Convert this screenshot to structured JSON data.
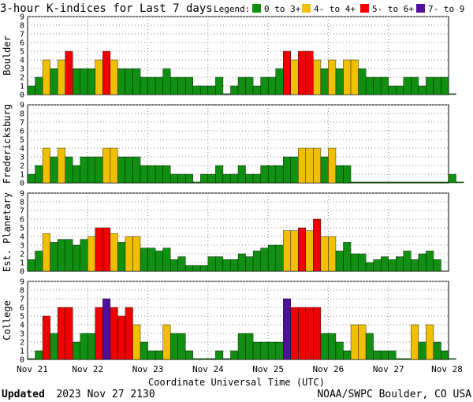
{
  "title": "3-hour K-indices for Last 7 days",
  "legend": {
    "label": "Legend:",
    "items": [
      {
        "label": "0 to 3+",
        "color": "#109010"
      },
      {
        "label": "4- to 4+",
        "color": "#f0c000"
      },
      {
        "label": "5- to 6+",
        "color": "#f00000"
      },
      {
        "label": "7- to 9",
        "color": "#50109a"
      }
    ]
  },
  "colors": {
    "grid": "#888888",
    "frame": "#000000",
    "bar_outline": "#000000"
  },
  "footer": {
    "updated_label": "Updated",
    "updated_value": "2023 Nov 27 2130",
    "source": "NOAA/SWPC Boulder, CO USA"
  },
  "chart_data": {
    "type": "bar",
    "xlabel": "Coordinate Universal Time (UTC)",
    "x_ticks": [
      "Nov 21",
      "Nov 22",
      "Nov 23",
      "Nov 24",
      "Nov 25",
      "Nov 26",
      "Nov 27",
      "Nov 28"
    ],
    "y_ticks": [
      "0",
      "1",
      "2",
      "3",
      "4",
      "5",
      "6",
      "7",
      "8",
      "9"
    ],
    "ylim": [
      0,
      9
    ],
    "intervals_per_day": 8,
    "color_thresholds": [
      {
        "min": 0,
        "max": 3.9,
        "color": "#109010"
      },
      {
        "min": 3.9,
        "max": 4.9,
        "color": "#f0c000"
      },
      {
        "min": 4.9,
        "max": 6.9,
        "color": "#f00000"
      },
      {
        "min": 6.9,
        "max": 9,
        "color": "#50109a"
      }
    ],
    "series": [
      {
        "name": "Boulder",
        "values": [
          1,
          2,
          4,
          3,
          4,
          5,
          3,
          3,
          3,
          4,
          5,
          4,
          3,
          3,
          3,
          2,
          2,
          2,
          3,
          2,
          2,
          2,
          1,
          1,
          1,
          2,
          0.1,
          1,
          2,
          2,
          1,
          2,
          2,
          3,
          5,
          4,
          5,
          5,
          4,
          3,
          4,
          3,
          4,
          4,
          3,
          2,
          2,
          2,
          1,
          1,
          2,
          2,
          1,
          2,
          2,
          2,
          0.1
        ]
      },
      {
        "name": "Fredericksburg",
        "values": [
          1,
          2,
          4,
          3,
          4,
          3,
          2,
          3,
          3,
          3,
          4,
          4,
          3,
          3,
          3,
          2,
          2,
          2,
          2,
          1,
          1,
          1,
          0.1,
          1,
          1,
          2,
          1,
          1,
          2,
          1,
          1,
          2,
          2,
          2,
          3,
          3,
          4,
          4,
          4,
          3,
          4,
          2,
          2,
          0.1,
          0.1,
          0.1,
          0.1,
          0.1,
          0.1,
          0.1,
          0.1,
          0.1,
          0.1,
          0.1,
          0.1,
          0.1,
          1,
          0.1
        ]
      },
      {
        "name": "Est. Planetary",
        "values": [
          1.33,
          2.33,
          4.33,
          3.33,
          3.67,
          3.67,
          3,
          3.67,
          4,
          5,
          5,
          4.33,
          3.33,
          4,
          4,
          2.67,
          2.67,
          2.33,
          2.67,
          1.33,
          1.67,
          0.67,
          0.67,
          0.67,
          1.67,
          1.67,
          1.33,
          1.33,
          2,
          1.67,
          2.33,
          2.67,
          3,
          3,
          4.67,
          4.67,
          5,
          4.67,
          6,
          4,
          4,
          2.33,
          3.33,
          2,
          2,
          1,
          1.33,
          1.67,
          1.33,
          1.67,
          2.33,
          1.33,
          2,
          2.33,
          1.33
        ]
      },
      {
        "name": "College",
        "values": [
          0.1,
          1,
          5,
          3,
          6,
          6,
          2,
          3,
          3,
          6,
          7,
          6,
          5,
          6,
          4,
          2,
          1,
          1,
          4,
          3,
          3,
          1,
          0.1,
          0.1,
          0.1,
          1,
          0.1,
          1,
          3,
          3,
          2,
          2,
          2,
          2,
          7,
          6,
          6,
          6,
          6,
          3,
          3,
          2,
          1,
          4,
          4,
          3,
          1,
          1,
          1,
          0.1,
          0.1,
          4,
          2,
          4,
          2,
          1,
          0.1
        ]
      }
    ]
  }
}
